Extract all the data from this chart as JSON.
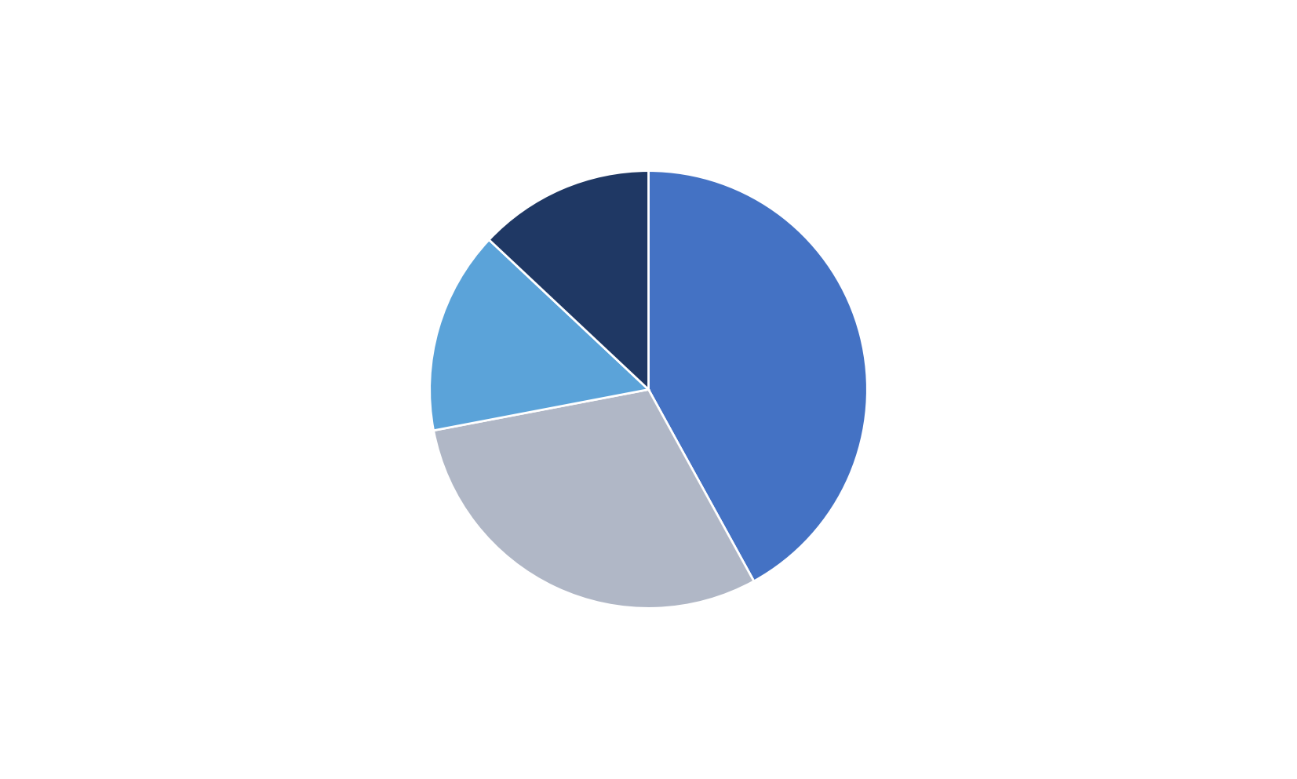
{
  "slices": [
    0.42,
    0.3,
    0.15,
    0.13
  ],
  "colors": [
    "#4472C4",
    "#B0B7C6",
    "#5BA3D9",
    "#1F3864"
  ],
  "startangle": 90,
  "background_color": "#ffffff",
  "figsize": [
    16.53,
    9.93
  ],
  "dpi": 100
}
